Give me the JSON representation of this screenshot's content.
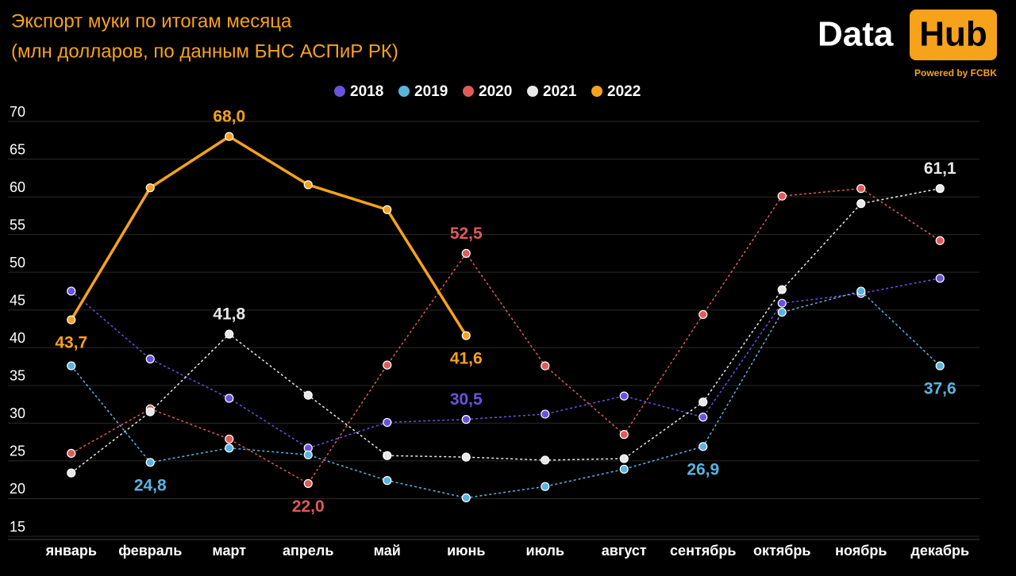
{
  "chart_data": {
    "type": "line",
    "title": "Экспорт муки по итогам месяца",
    "subtitle": "(млн долларов, по данным БНС АСПиР РК)",
    "categories": [
      "январь",
      "февраль",
      "март",
      "апрель",
      "май",
      "июнь",
      "июль",
      "август",
      "сентябрь",
      "октябрь",
      "ноябрь",
      "декабрь"
    ],
    "series": [
      {
        "name": "2018",
        "color": "#6b52de",
        "line_style": "dashed",
        "values": [
          47.5,
          38.5,
          33.3,
          26.7,
          30.1,
          30.5,
          31.2,
          33.6,
          30.8,
          45.9,
          47.2,
          49.2
        ],
        "value_labels": [
          null,
          null,
          null,
          null,
          null,
          "30,5",
          null,
          null,
          null,
          null,
          null,
          null
        ]
      },
      {
        "name": "2019",
        "color": "#5ab4e0",
        "line_style": "dashed",
        "values": [
          37.6,
          24.8,
          26.7,
          25.8,
          22.4,
          20.1,
          21.6,
          23.9,
          26.9,
          44.7,
          47.5,
          37.6
        ],
        "value_labels": [
          null,
          "24,8",
          null,
          null,
          null,
          null,
          null,
          null,
          "26,9",
          null,
          null,
          "37,6"
        ]
      },
      {
        "name": "2020",
        "color": "#e05a5a",
        "line_style": "dashed",
        "values": [
          26.0,
          31.9,
          27.9,
          22.0,
          37.7,
          52.5,
          37.6,
          28.5,
          44.4,
          60.1,
          61.1,
          54.2
        ],
        "value_labels": [
          null,
          null,
          null,
          "22,0",
          null,
          "52,5",
          null,
          null,
          null,
          null,
          null,
          null
        ]
      },
      {
        "name": "2021",
        "color": "#e8e8e8",
        "line_style": "dashed",
        "values": [
          23.4,
          31.5,
          41.8,
          33.7,
          25.7,
          25.5,
          25.1,
          25.3,
          32.8,
          47.7,
          59.1,
          61.1
        ],
        "value_labels": [
          null,
          null,
          "41,8",
          null,
          null,
          null,
          null,
          null,
          null,
          null,
          null,
          "61,1"
        ]
      },
      {
        "name": "2022",
        "color": "#f7a21b",
        "line_style": "solid",
        "values": [
          43.7,
          61.2,
          68.0,
          61.6,
          58.3,
          41.6,
          null,
          null,
          null,
          null,
          null,
          null
        ],
        "value_labels": [
          "43,7",
          null,
          "68,0",
          null,
          null,
          "41,6",
          null,
          null,
          null,
          null,
          null,
          null
        ]
      }
    ],
    "ylim": [
      15,
      70
    ],
    "yticks": [
      15,
      20,
      25,
      30,
      35,
      40,
      45,
      50,
      55,
      60,
      65,
      70
    ],
    "grid": true,
    "legend": "top"
  },
  "logo": {
    "left": "Data",
    "right": "Hub",
    "caption": "Powered by FCBK"
  }
}
